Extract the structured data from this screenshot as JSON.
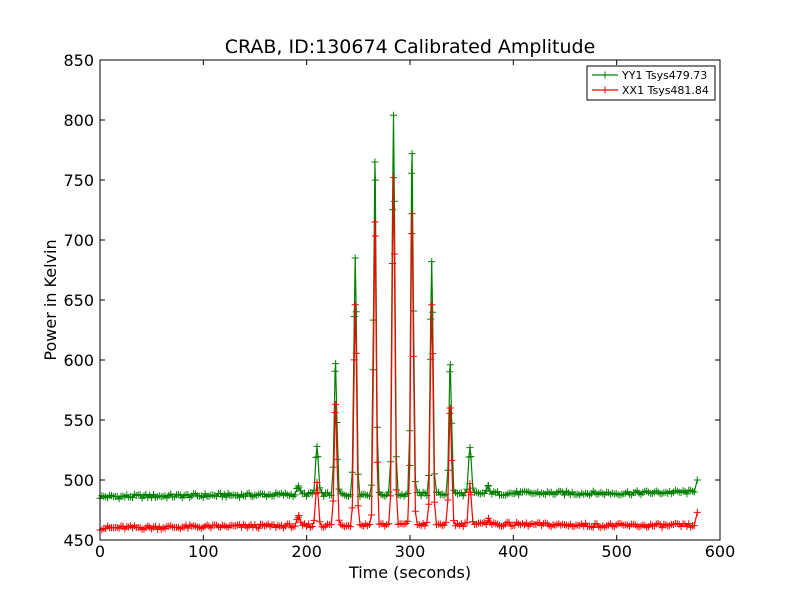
{
  "chart_data": {
    "type": "line",
    "title": "CRAB, ID:130674 Calibrated Amplitude",
    "xlabel": "Time (seconds)",
    "ylabel": "Power in Kelvin",
    "xlim": [
      0,
      600
    ],
    "ylim": [
      450,
      850
    ],
    "xticks": [
      "0",
      "100",
      "200",
      "300",
      "400",
      "500",
      "600"
    ],
    "yticks": [
      "450",
      "500",
      "550",
      "600",
      "650",
      "700",
      "750",
      "800",
      "850"
    ],
    "grid": false,
    "legend_position": "top-right",
    "x_end": 578,
    "series": [
      {
        "name": "YY1 Tsys479.73",
        "color": "#008000",
        "marker": "+",
        "baseline": [
          [
            0,
            486
          ],
          [
            100,
            487
          ],
          [
            200,
            488
          ],
          [
            300,
            488
          ],
          [
            400,
            489
          ],
          [
            500,
            489
          ],
          [
            575,
            490
          ]
        ],
        "peaks": [
          [
            192,
            495
          ],
          [
            210,
            528
          ],
          [
            228,
            597
          ],
          [
            247,
            685
          ],
          [
            266,
            765
          ],
          [
            284,
            804
          ],
          [
            302,
            772
          ],
          [
            321,
            682
          ],
          [
            339,
            596
          ],
          [
            358,
            527
          ],
          [
            376,
            495
          ]
        ],
        "end_point": [
          578,
          500
        ]
      },
      {
        "name": "XX1 Tsys481.84",
        "color": "#ff0000",
        "marker": "+",
        "baseline": [
          [
            0,
            460
          ],
          [
            100,
            461
          ],
          [
            200,
            462
          ],
          [
            300,
            463
          ],
          [
            400,
            463
          ],
          [
            500,
            462
          ],
          [
            575,
            462
          ]
        ],
        "peaks": [
          [
            192,
            469
          ],
          [
            210,
            498
          ],
          [
            228,
            563
          ],
          [
            247,
            646
          ],
          [
            266,
            715
          ],
          [
            284,
            752
          ],
          [
            302,
            722
          ],
          [
            321,
            646
          ],
          [
            339,
            560
          ],
          [
            358,
            497
          ],
          [
            376,
            468
          ]
        ],
        "end_point": [
          578,
          473
        ]
      }
    ]
  }
}
